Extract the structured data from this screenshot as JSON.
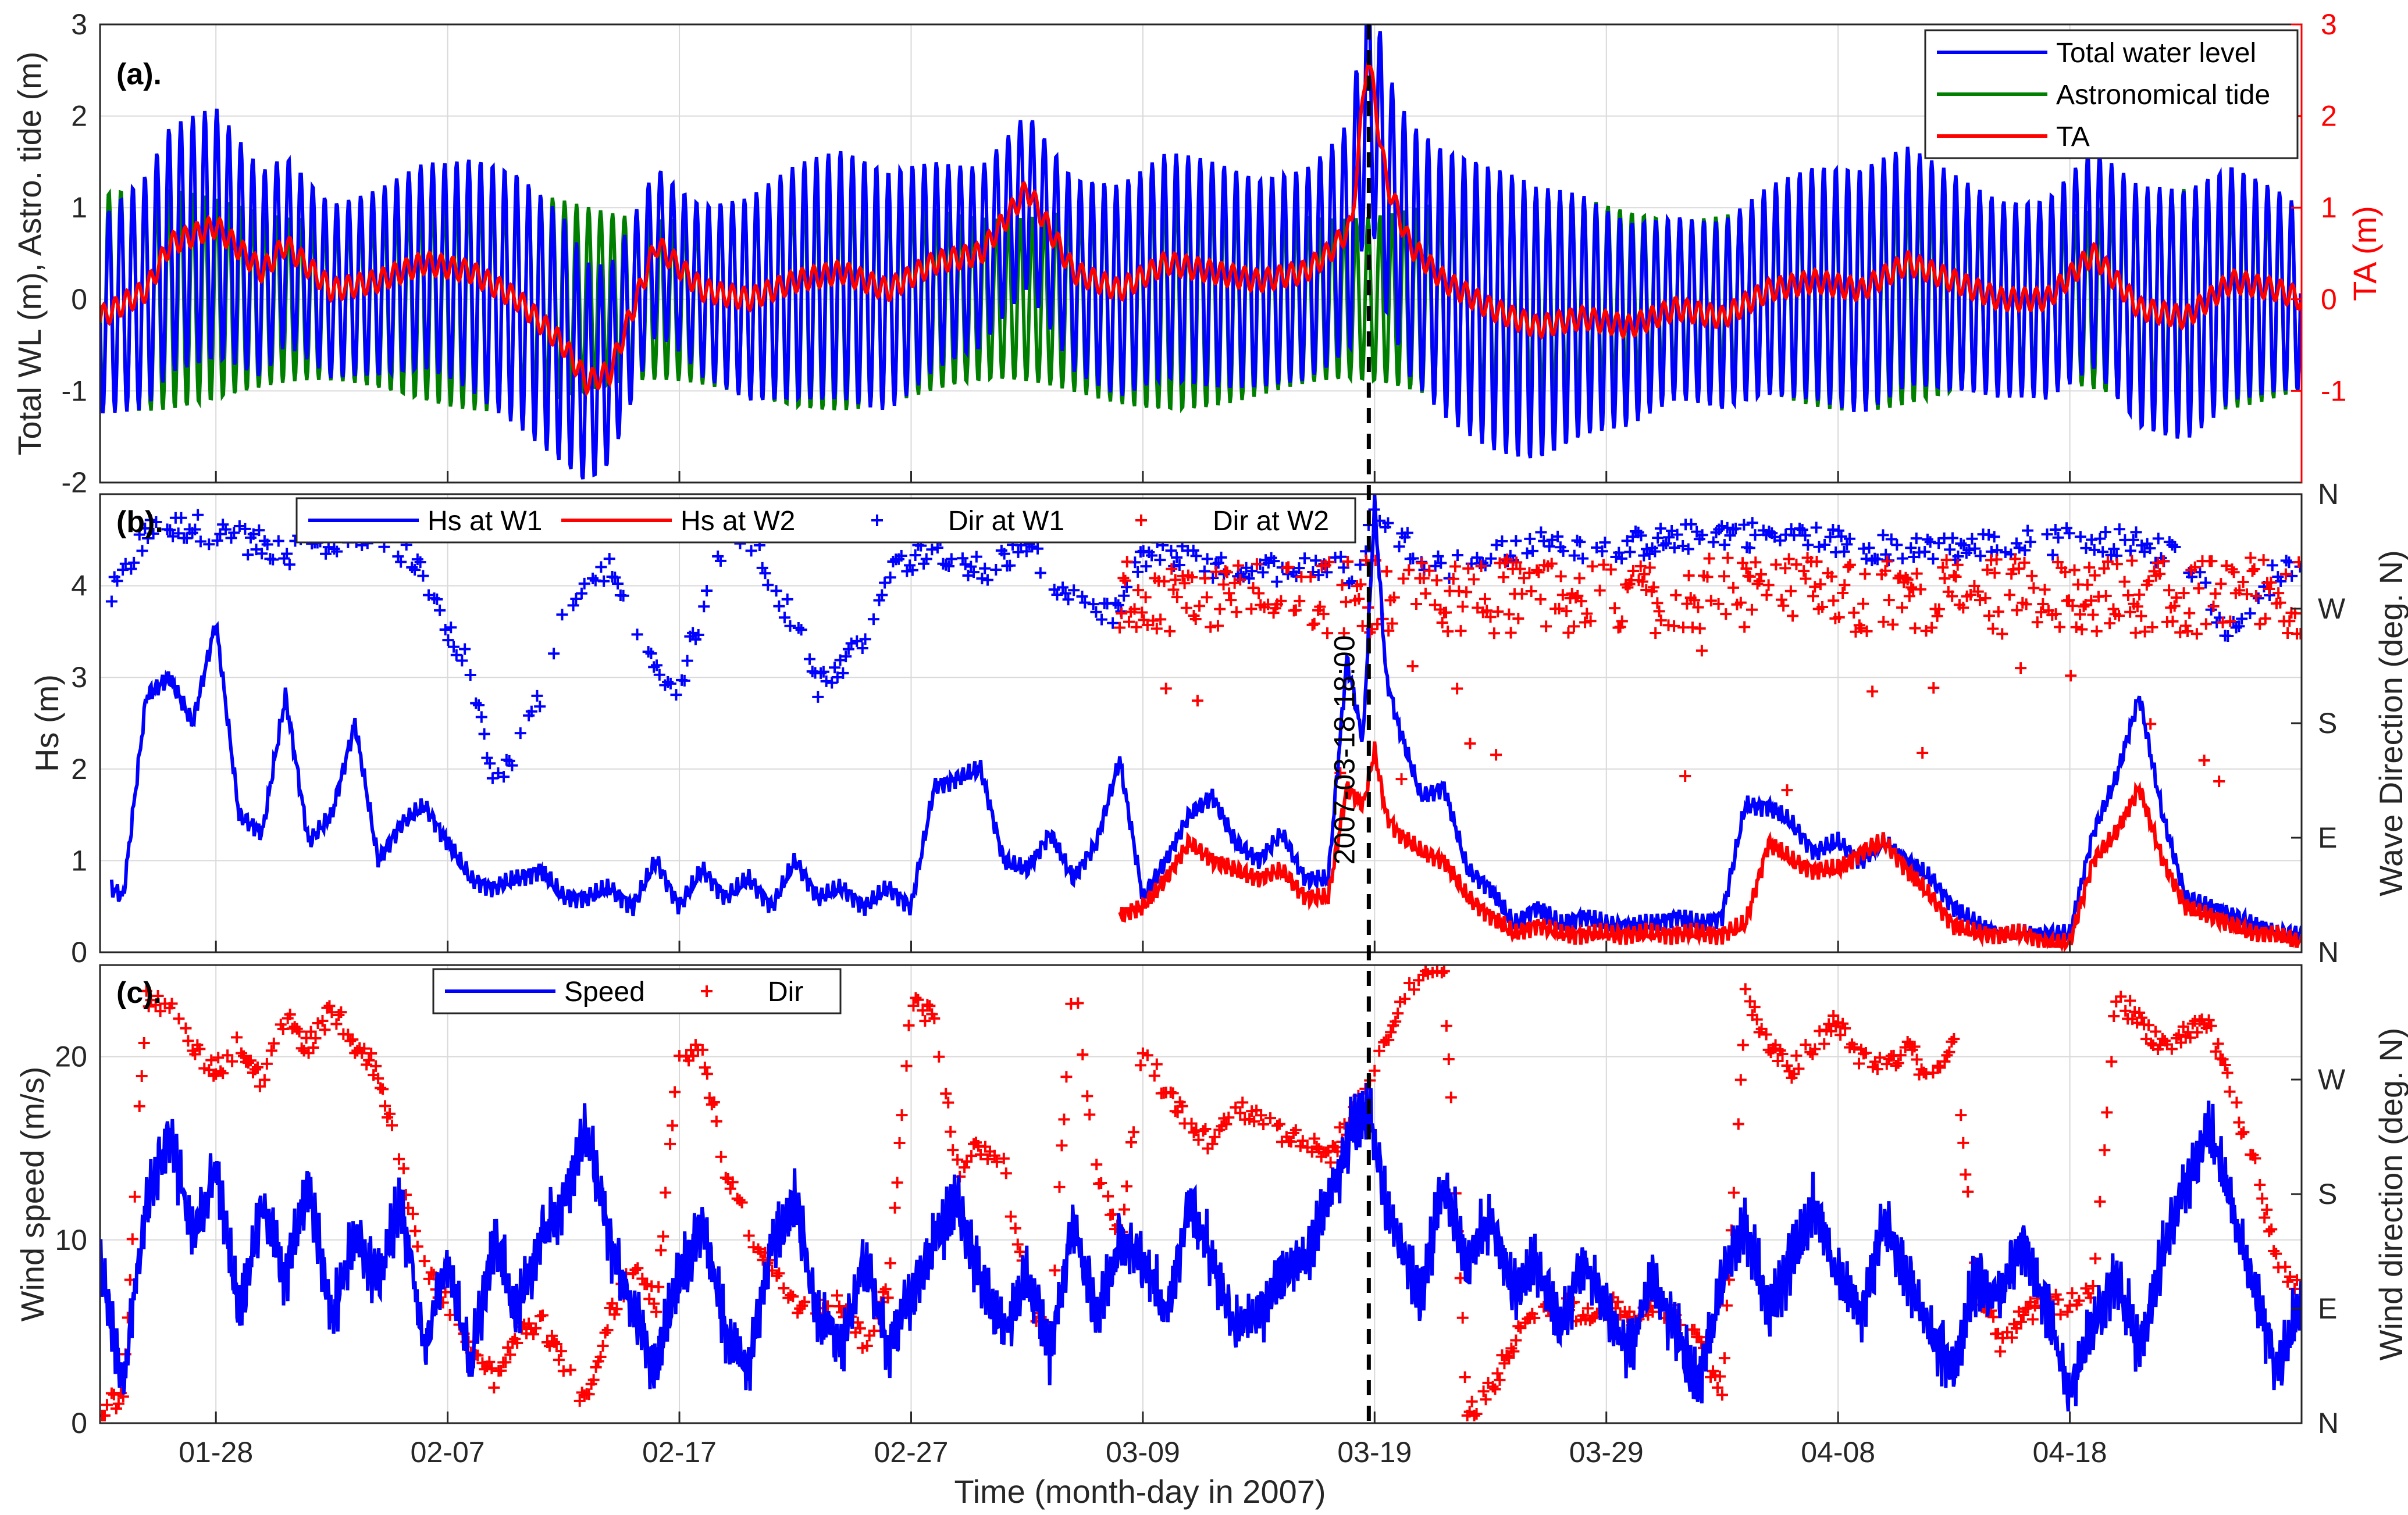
{
  "figure": {
    "xlabel": "Time (month-day in 2007)",
    "x_range_days": [
      22,
      117
    ],
    "x_ticks": [
      {
        "day": 27,
        "label": "01-28"
      },
      {
        "day": 37,
        "label": "02-07"
      },
      {
        "day": 47,
        "label": "02-17"
      },
      {
        "day": 57,
        "label": "02-27"
      },
      {
        "day": 67,
        "label": "03-09"
      },
      {
        "day": 77,
        "label": "03-19"
      },
      {
        "day": 87,
        "label": "03-29"
      },
      {
        "day": 97,
        "label": "04-08"
      },
      {
        "day": 107,
        "label": "04-18"
      }
    ],
    "event_day": 76.75,
    "event_label": "2007-03-18 18:00"
  },
  "colors": {
    "blue": "#0000ff",
    "green": "#007f00",
    "red": "#ff0000",
    "grid": "#d9d9d9",
    "axis": "#262626"
  },
  "chart_data": [
    {
      "panel": "(a).",
      "type": "line",
      "ylabel_left": "Total WL (m), Astro. tide (m)",
      "ylabel_right": "TA (m)",
      "ylim_left": [
        -2,
        3
      ],
      "ylim_right": [
        -2,
        3
      ],
      "yticks_left": [
        "-2",
        "-1",
        "0",
        "1",
        "2",
        "3"
      ],
      "yticks_right": [
        "-1",
        "0",
        "1",
        "2",
        "3"
      ],
      "legend": [
        "Total water level",
        "Astronomical tide",
        "TA"
      ],
      "series": [
        {
          "name": "Total water level",
          "color": "#0000ff",
          "model": "tide + surge, semidiurnal, range about -1.9 to 1.7 m, peak 3.0 m at 03-18",
          "envelope_days": [
            22,
            27,
            32,
            37,
            42,
            47,
            52,
            57,
            62,
            67,
            72,
            76.7,
            80,
            87,
            97,
            107,
            117
          ],
          "envelope_amp": [
            1.1,
            1.5,
            1.3,
            1.2,
            1.5,
            1.2,
            1.3,
            1.4,
            1.3,
            1.2,
            1.3,
            1.8,
            1.6,
            1.4,
            1.3,
            1.5,
            1.2
          ]
        },
        {
          "name": "Astronomical tide",
          "color": "#007f00",
          "model": "semidiurnal, amplitude 0.9-1.25 m with spring-neap cycle"
        },
        {
          "name": "TA",
          "color": "#ff0000",
          "x_days": [
            22,
            24,
            25,
            27,
            29,
            30,
            32,
            34,
            36,
            38,
            40,
            42,
            43,
            44,
            46,
            48,
            50,
            52,
            54,
            56,
            58,
            60,
            62,
            64,
            66,
            68,
            70,
            72,
            74,
            75,
            76,
            76.7,
            77.5,
            78.5,
            80,
            82,
            84,
            86,
            88,
            90,
            92,
            94,
            96,
            98,
            100,
            102,
            104,
            106,
            108,
            110,
            112,
            114,
            116,
            117
          ],
          "y": [
            -0.2,
            0.1,
            0.6,
            0.8,
            0.3,
            0.6,
            0.1,
            0.2,
            0.4,
            0.3,
            0.0,
            -0.5,
            -0.9,
            -0.8,
            0.6,
            0.1,
            0.0,
            0.2,
            0.3,
            0.1,
            0.4,
            0.5,
            1.2,
            0.3,
            0.1,
            0.4,
            0.3,
            0.2,
            0.3,
            0.5,
            0.8,
            2.7,
            1.3,
            0.6,
            0.2,
            -0.1,
            -0.3,
            -0.2,
            -0.3,
            -0.1,
            -0.2,
            0.1,
            0.2,
            0.1,
            0.4,
            0.2,
            0.0,
            0.0,
            0.5,
            -0.1,
            -0.2,
            0.2,
            0.1,
            0.0
          ]
        }
      ]
    },
    {
      "panel": "(b).",
      "type": "line+scatter",
      "ylabel_left": "Hs (m)",
      "ylabel_right": "Wave Direction (deg. N)",
      "ylim_left": [
        0,
        5
      ],
      "yticks_left": [
        "0",
        "1",
        "2",
        "3",
        "4"
      ],
      "yticks_right": [
        "N",
        "E",
        "S",
        "W",
        "N"
      ],
      "legend": [
        "Hs at W1",
        "Hs at W2",
        "Dir at W1",
        "Dir at W2"
      ],
      "series": [
        {
          "name": "Hs at W1",
          "color": "#0000ff",
          "x_days": [
            22.5,
            23,
            24,
            25,
            26,
            27,
            28,
            29,
            30,
            31,
            32,
            33,
            34,
            35,
            36,
            37,
            38,
            39,
            40,
            41,
            42,
            43,
            44,
            45,
            46,
            47,
            48,
            49,
            50,
            51,
            52,
            53,
            54,
            55,
            56,
            57,
            58,
            59,
            60,
            61,
            62,
            63,
            64,
            65,
            66,
            67,
            68,
            69,
            70,
            71,
            72,
            73,
            74,
            75,
            75.8,
            76.5,
            77,
            77.5,
            78,
            79,
            80,
            81,
            82,
            83,
            84,
            85,
            86,
            87,
            88,
            89,
            90,
            91,
            92,
            93,
            94,
            95,
            96,
            97,
            98,
            99,
            100,
            101,
            102,
            103,
            104,
            105,
            106,
            107,
            108,
            109,
            110,
            111,
            112,
            113,
            114,
            115,
            116,
            117
          ],
          "y": [
            0.7,
            0.6,
            2.8,
            3.0,
            2.5,
            3.6,
            1.5,
            1.3,
            2.8,
            1.2,
            1.5,
            2.5,
            1.0,
            1.4,
            1.6,
            1.2,
            0.8,
            0.7,
            0.8,
            0.9,
            0.6,
            0.6,
            0.7,
            0.5,
            1.0,
            0.5,
            0.9,
            0.6,
            0.8,
            0.5,
            1.0,
            0.6,
            0.7,
            0.5,
            0.7,
            0.5,
            1.8,
            1.9,
            2.0,
            1.0,
            0.9,
            1.3,
            0.8,
            1.2,
            2.1,
            0.6,
            1.0,
            1.5,
            1.7,
            1.2,
            1.0,
            1.3,
            0.8,
            0.8,
            3.2,
            2.3,
            4.9,
            3.0,
            2.5,
            1.7,
            1.8,
            0.9,
            0.7,
            0.3,
            0.5,
            0.3,
            0.4,
            0.3,
            0.3,
            0.3,
            0.4,
            0.3,
            0.4,
            1.6,
            1.6,
            1.4,
            1.1,
            1.2,
            1.0,
            1.2,
            1.0,
            0.8,
            0.5,
            0.3,
            0.2,
            0.2,
            0.2,
            0.2,
            1.3,
            1.9,
            2.8,
            1.5,
            0.6,
            0.5,
            0.4,
            0.3,
            0.2,
            0.2
          ]
        },
        {
          "name": "Hs at W2",
          "color": "#ff0000",
          "x_days": [
            66,
            67,
            68,
            69,
            70,
            71,
            72,
            73,
            74,
            75,
            75.8,
            76.5,
            77,
            77.5,
            78,
            79,
            80,
            81,
            82,
            83,
            84,
            85,
            86,
            87,
            88,
            89,
            90,
            91,
            92,
            93,
            94,
            95,
            96,
            97,
            98,
            99,
            100,
            101,
            102,
            103,
            104,
            105,
            106,
            107,
            108,
            109,
            110,
            111,
            112,
            113,
            114,
            115,
            116,
            117
          ],
          "y": [
            0.4,
            0.5,
            0.8,
            1.2,
            1.0,
            0.9,
            0.8,
            0.9,
            0.6,
            0.6,
            1.8,
            1.6,
            2.2,
            1.5,
            1.3,
            1.1,
            1.0,
            0.6,
            0.4,
            0.2,
            0.3,
            0.2,
            0.2,
            0.2,
            0.2,
            0.2,
            0.2,
            0.2,
            0.2,
            0.3,
            1.2,
            1.0,
            0.9,
            0.9,
            1.1,
            1.2,
            0.9,
            0.6,
            0.3,
            0.2,
            0.2,
            0.2,
            0.1,
            0.1,
            1.0,
            1.3,
            1.8,
            1.0,
            0.5,
            0.4,
            0.3,
            0.2,
            0.2,
            0.1
          ]
        },
        {
          "name": "Dir at W1",
          "color": "#0000ff",
          "marker": "+",
          "model": "direction mostly near W (270-330 deg), wandering to S and E"
        },
        {
          "name": "Dir at W2",
          "color": "#ff0000",
          "marker": "+",
          "model": "direction near W (250-290 deg) with heavy scatter, from 03-08"
        }
      ]
    },
    {
      "panel": "(c).",
      "type": "line+scatter",
      "ylabel_left": "Wind speed (m/s)",
      "ylabel_right": "Wind direction (deg. N)",
      "ylim_left": [
        0,
        25
      ],
      "yticks_left": [
        "0",
        "10",
        "20"
      ],
      "yticks_right": [
        "N",
        "E",
        "S",
        "W"
      ],
      "legend": [
        "Speed",
        "Dir"
      ],
      "series": [
        {
          "name": "Speed",
          "color": "#0000ff",
          "x_days": [
            22,
            23,
            24,
            25,
            26,
            27,
            28,
            29,
            30,
            31,
            32,
            33,
            34,
            35,
            36,
            37,
            38,
            39,
            40,
            41,
            42,
            43,
            44,
            45,
            46,
            47,
            48,
            49,
            50,
            51,
            52,
            53,
            54,
            55,
            56,
            57,
            58,
            59,
            60,
            61,
            62,
            63,
            64,
            65,
            66,
            67,
            68,
            69,
            70,
            71,
            72,
            73,
            74,
            75,
            76,
            76.8,
            77.5,
            78,
            79,
            80,
            81,
            82,
            83,
            84,
            85,
            86,
            87,
            88,
            89,
            90,
            91,
            92,
            93,
            94,
            95,
            96,
            97,
            98,
            99,
            100,
            101,
            102,
            103,
            104,
            105,
            106,
            107,
            108,
            109,
            110,
            111,
            112,
            113,
            114,
            115,
            116,
            117
          ],
          "y": [
            9,
            2,
            12,
            16,
            10,
            14,
            6,
            12,
            8,
            13,
            6,
            10,
            8,
            12,
            4,
            9,
            3,
            10,
            6,
            10,
            12,
            16,
            10,
            6,
            3,
            8,
            11,
            5,
            3,
            10,
            12,
            6,
            4,
            9,
            4,
            7,
            10,
            12,
            8,
            5,
            8,
            4,
            11,
            6,
            10,
            9,
            6,
            12,
            9,
            5,
            6,
            8,
            9,
            12,
            16,
            17,
            12,
            10,
            7,
            13,
            9,
            11,
            7,
            9,
            5,
            9,
            6,
            4,
            8,
            5,
            2,
            8,
            11,
            6,
            9,
            12,
            8,
            6,
            11,
            8,
            5,
            3,
            8,
            7,
            10,
            6,
            2,
            5,
            8,
            4,
            9,
            13,
            16,
            12,
            7,
            3,
            7
          ]
        },
        {
          "name": "Dir",
          "color": "#ff0000",
          "marker": "+",
          "x_days": [
            22,
            23,
            24,
            25,
            26,
            27,
            28,
            29,
            30,
            31,
            32,
            33,
            34,
            35,
            36,
            37,
            38,
            39,
            40,
            41,
            42,
            43,
            44,
            45,
            46,
            47,
            48,
            49,
            50,
            51,
            52,
            53,
            54,
            55,
            56,
            57,
            58,
            59,
            60,
            61,
            62,
            63,
            64,
            65,
            66,
            67,
            68,
            69,
            70,
            71,
            72,
            73,
            74,
            75,
            76,
            76.8,
            77.5,
            78,
            79,
            80,
            81,
            82,
            83,
            84,
            85,
            86,
            87,
            88,
            89,
            90,
            91,
            92,
            93,
            94,
            95,
            96,
            97,
            98,
            99,
            100,
            101,
            102,
            103,
            104,
            105,
            106,
            107,
            108,
            109,
            110,
            111,
            112,
            113,
            114,
            115,
            116,
            117
          ],
          "y_deg": [
            0,
            20,
            340,
            330,
            300,
            280,
            300,
            270,
            320,
            300,
            330,
            300,
            280,
            200,
            120,
            90,
            60,
            30,
            60,
            80,
            40,
            10,
            80,
            120,
            90,
            300,
            290,
            200,
            150,
            120,
            90,
            90,
            90,
            60,
            100,
            340,
            320,
            200,
            220,
            200,
            100,
            60,
            360,
            200,
            140,
            300,
            260,
            240,
            220,
            250,
            240,
            230,
            220,
            210,
            240,
            270,
            300,
            330,
            360,
            360,
            0,
            20,
            60,
            80,
            90,
            80,
            90,
            80,
            90,
            80,
            60,
            20,
            340,
            300,
            280,
            300,
            320,
            290,
            280,
            300,
            270,
            300,
            100,
            60,
            80,
            90,
            90,
            100,
            340,
            320,
            300,
            310,
            320,
            260,
            200,
            120,
            100
          ]
        }
      ]
    }
  ]
}
